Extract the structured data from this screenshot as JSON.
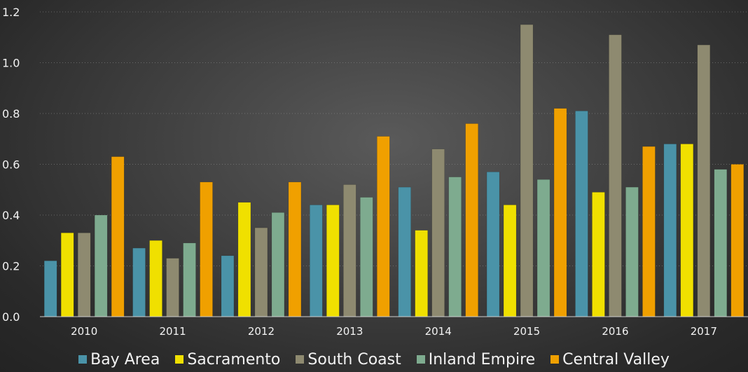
{
  "chart_data": {
    "type": "bar",
    "title": "",
    "xlabel": "",
    "ylabel": "",
    "categories": [
      "2010",
      "2011",
      "2012",
      "2013",
      "2014",
      "2015",
      "2016",
      "2017"
    ],
    "ylim": [
      0,
      1.2
    ],
    "yticks": [
      "0.0",
      "0.2",
      "0.4",
      "0.6",
      "0.8",
      "1.0",
      "1.2"
    ],
    "grid": "horizontal dotted",
    "legend_position": "bottom",
    "series": [
      {
        "name": "Bay Area",
        "color": "#4a93a8",
        "values": [
          0.22,
          0.27,
          0.24,
          0.44,
          0.51,
          0.57,
          0.81,
          0.68
        ]
      },
      {
        "name": "Sacramento",
        "color": "#f0e000",
        "values": [
          0.33,
          0.3,
          0.45,
          0.44,
          0.34,
          0.44,
          0.49,
          0.68
        ]
      },
      {
        "name": "South Coast",
        "color": "#8e8a70",
        "values": [
          0.33,
          0.23,
          0.35,
          0.52,
          0.66,
          1.15,
          1.11,
          1.07
        ]
      },
      {
        "name": "Inland Empire",
        "color": "#7eab8f",
        "values": [
          0.4,
          0.29,
          0.41,
          0.47,
          0.55,
          0.54,
          0.51,
          0.58
        ]
      },
      {
        "name": "Central Valley",
        "color": "#f0a000",
        "values": [
          0.63,
          0.53,
          0.53,
          0.71,
          0.76,
          0.82,
          0.67,
          0.6
        ]
      }
    ]
  }
}
